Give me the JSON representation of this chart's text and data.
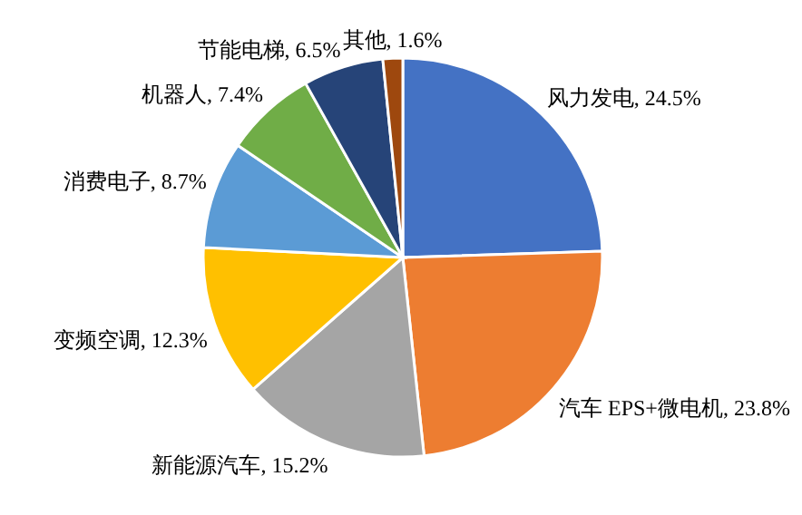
{
  "chart_data": {
    "type": "pie",
    "categories": [
      "风力发电",
      "汽车 EPS+微电机",
      "新能源汽车",
      "变频空调",
      "消费电子",
      "机器人",
      "节能电梯",
      "其他"
    ],
    "values": [
      24.5,
      23.8,
      15.2,
      12.3,
      8.7,
      7.4,
      6.5,
      1.6
    ],
    "value_labels": [
      ", 24.5%",
      ", 23.8%",
      ", 15.2%",
      ", 12.3%",
      ", 8.7%",
      ", 7.4%",
      ", 6.5%",
      ", 1.6%"
    ],
    "colors": [
      "#4472c4",
      "#ed7d31",
      "#a5a5a5",
      "#ffc000",
      "#5b9bd5",
      "#70ad47",
      "#264478",
      "#9e480e"
    ]
  }
}
